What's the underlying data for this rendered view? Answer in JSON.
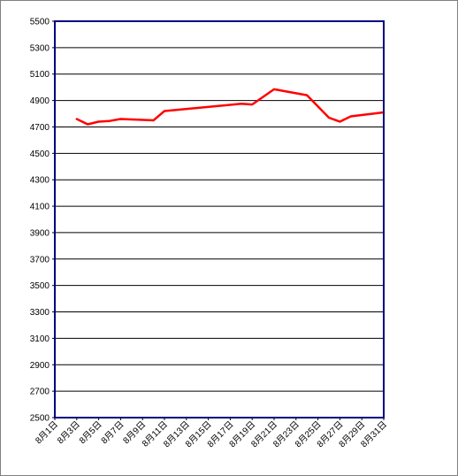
{
  "chart_data": {
    "type": "line",
    "title": "",
    "xlabel": "",
    "ylabel": "",
    "ylim": [
      2500,
      5500
    ],
    "yticks": [
      2500,
      2700,
      2900,
      3100,
      3300,
      3500,
      3700,
      3900,
      4100,
      4300,
      4500,
      4700,
      4900,
      5100,
      5300,
      5500
    ],
    "xlim": [
      1,
      31
    ],
    "xticks": [
      1,
      3,
      5,
      7,
      9,
      11,
      13,
      15,
      17,
      19,
      21,
      23,
      25,
      27,
      29,
      31
    ],
    "xtick_labels": [
      "8月1日",
      "8月3日",
      "8月5日",
      "8月7日",
      "8月9日",
      "8月11日",
      "8月13日",
      "8月15日",
      "8月17日",
      "8月19日",
      "8月21日",
      "8月23日",
      "8月25日",
      "8月27日",
      "8月29日",
      "8月31日"
    ],
    "grid": true,
    "series": [
      {
        "color": "#ff0000",
        "x": [
          3,
          4,
          5,
          6,
          7,
          10,
          11,
          18,
          19,
          21,
          24,
          26,
          27,
          28,
          31
        ],
        "y": [
          4760,
          4720,
          4740,
          4745,
          4760,
          4750,
          4820,
          4875,
          4870,
          4985,
          4940,
          4770,
          4740,
          4780,
          4810
        ]
      }
    ],
    "colors": {
      "plot_border": "#000080",
      "grid": "#000000",
      "line": "#ff0000"
    }
  }
}
